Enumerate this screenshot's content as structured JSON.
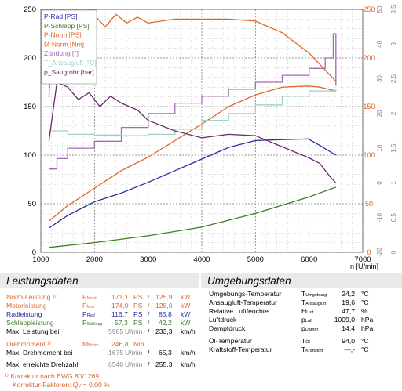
{
  "chart_data": {
    "type": "line",
    "xlabel": "n [U/min]",
    "x_ticks": [
      "1000",
      "2000",
      "3000",
      "4000",
      "5000",
      "6000",
      "7000"
    ],
    "xlim": [
      1000,
      7000
    ],
    "left_axis": {
      "range": [
        0,
        250
      ],
      "ticks": [
        "0",
        "50",
        "100",
        "150",
        "200",
        "250"
      ]
    },
    "right_axis_1": {
      "range": [
        0,
        250
      ],
      "ticks": [
        "0",
        "50",
        "100",
        "150",
        "200",
        "250"
      ],
      "color": "#e2662a"
    },
    "right_axis_2": {
      "range": [
        -20,
        50
      ],
      "ticks": [
        "-20",
        "-10",
        "0",
        "10",
        "20",
        "30",
        "40",
        "50"
      ],
      "color": "#a46ab2"
    },
    "right_axis_3": {
      "range": [
        0,
        3.5
      ],
      "ticks": [
        "0",
        "0.5",
        "1",
        "1.5",
        "2",
        "2.5",
        "3",
        "3.5"
      ],
      "color": "#a46ab2"
    },
    "grid": true,
    "legend_position": "top-left",
    "legend": [
      {
        "label": "P-Rad [PS]",
        "color": "#2c2ca0"
      },
      {
        "label": "P-Schlepp [PS]",
        "color": "#3b7d27"
      },
      {
        "label": "P-Norm [PS]",
        "color": "#e2662a"
      },
      {
        "label": "M-Norm [Nm]",
        "color": "#e2662a"
      },
      {
        "label": "Zündung [°]",
        "color": "#a46ab2"
      },
      {
        "label": "T_Ansaugluft [°C]",
        "color": "#9fd1c7"
      },
      {
        "label": "p_Saugrohr [bar]",
        "color": "#6b2a6e"
      }
    ],
    "series": [
      {
        "name": "P-Rad [PS]",
        "color": "#2c2ca0",
        "x": [
          1150,
          1500,
          2000,
          2500,
          3000,
          3500,
          4000,
          4500,
          5000,
          5500,
          5985,
          6200,
          6500
        ],
        "y": [
          25,
          38,
          52,
          61,
          72,
          84,
          96,
          108,
          115,
          116,
          116.7,
          110,
          100
        ]
      },
      {
        "name": "P-Schlepp [PS]",
        "color": "#3b7d27",
        "x": [
          1150,
          2000,
          3000,
          4000,
          5000,
          6000,
          6500
        ],
        "y": [
          5,
          10,
          17,
          26,
          40,
          57,
          67
        ]
      },
      {
        "name": "P-Norm [PS]",
        "color": "#e2662a",
        "x": [
          1150,
          1500,
          2000,
          2500,
          3000,
          3500,
          4000,
          4500,
          5000,
          5500,
          5985,
          6200,
          6500
        ],
        "y": [
          32,
          48,
          66,
          84,
          98,
          115,
          132,
          150,
          162,
          170,
          171.1,
          170,
          166
        ]
      },
      {
        "name": "M-Norm [Nm]",
        "color": "#e2662a",
        "x": [
          1150,
          1200,
          1400,
          1600,
          1800,
          2000,
          2200,
          2400,
          2600,
          2800,
          3000,
          3500,
          4000,
          4500,
          5000,
          5500,
          6000,
          6500
        ],
        "y": [
          160,
          205,
          236,
          246,
          238,
          244,
          232,
          245,
          236,
          242,
          236,
          240,
          240,
          240,
          238,
          226,
          205,
          176
        ]
      },
      {
        "name": "Zündung [°]",
        "color": "#a46ab2",
        "x": [
          1150,
          1300,
          1500,
          2000,
          2500,
          3000,
          3500,
          4000,
          4500,
          5000,
          5500,
          6000,
          6300,
          6450,
          6500
        ],
        "y": [
          4,
          7,
          10,
          12,
          16,
          20,
          23,
          25,
          27,
          29,
          31,
          33,
          36,
          43,
          28
        ]
      },
      {
        "name": "T_Ansaugluft [°C]",
        "color": "#9fd1c7",
        "x": [
          1150,
          1500,
          2000,
          2500,
          3000,
          3500,
          4000,
          4500,
          5000,
          5500,
          6000,
          6500
        ],
        "y": [
          15,
          14,
          13.8,
          13.6,
          14,
          15.5,
          18,
          20,
          22.5,
          25,
          26.5,
          27
        ]
      },
      {
        "name": "p_Saugrohr [bar]",
        "color": "#6b2a6e",
        "x": [
          1150,
          1300,
          1500,
          1700,
          1900,
          2100,
          2300,
          2500,
          2800,
          3000,
          3500,
          4000,
          4500,
          5000,
          5500,
          6000,
          6200,
          6400,
          6500
        ],
        "y": [
          1.6,
          2.45,
          2.38,
          2.2,
          2.3,
          2.1,
          2.25,
          2.15,
          2.05,
          1.9,
          1.75,
          1.65,
          1.7,
          1.68,
          1.52,
          1.36,
          1.28,
          1.08,
          1.0
        ]
      }
    ]
  },
  "leistungsdaten": {
    "title": "Leistungsdaten",
    "norm": {
      "label": "Norm-Leistung ¹⁾",
      "sym": "P",
      "sub": "Norm",
      "ps": "171,1",
      "ps_unit": "PS",
      "sep": "/",
      "kw": "125,9",
      "kw_unit": "kW"
    },
    "motor": {
      "label": "Motorleistung",
      "sym": "P",
      "sub": "Mot",
      "ps": "174,0",
      "ps_unit": "PS",
      "sep": "/",
      "kw": "128,0",
      "kw_unit": "kW"
    },
    "rad": {
      "label": "Radleistung",
      "sym": "P",
      "sub": "Rad",
      "ps": "116,7",
      "ps_unit": "PS",
      "sep": "/",
      "kw": "85,8",
      "kw_unit": "kW"
    },
    "schlepp": {
      "label": "Schleppleistung",
      "sym": "P",
      "sub": "Schlepp",
      "ps": "57,3",
      "ps_unit": "PS",
      "sep": "/",
      "kw": "42,2",
      "kw_unit": "kW"
    },
    "max_leistung": {
      "label": "Max. Leistung bei",
      "rpm": "5985",
      "rpm_unit": "U/min",
      "sep": "/",
      "speed": "233,3",
      "speed_unit": "km/h"
    },
    "drehmoment": {
      "label": "Drehmoment ¹⁾",
      "sym": "M",
      "sub": "Norm",
      "value": "246,8",
      "unit": "Nm"
    },
    "max_drehmoment": {
      "label": "Max. Drehmoment bei",
      "rpm": "1675",
      "rpm_unit": "U/min",
      "sep": "/",
      "speed": "65,3",
      "speed_unit": "km/h"
    },
    "max_drehzahl": {
      "label": "Max. erreichte Drehzahl",
      "rpm": "6540",
      "rpm_unit": "U/min",
      "sep": "/",
      "speed": "255,3",
      "speed_unit": "km/h"
    },
    "footnote1": "¹⁾ Korrektur nach EWG 80/1269",
    "footnote2": "Korrektur-Faktoren: Q",
    "footnote2_sub": "V",
    "footnote2_val": "=  0,00 %"
  },
  "umgebungsdaten": {
    "title": "Umgebungsdaten",
    "rows": [
      {
        "label": "Umgebungs-Temperatur",
        "sym": "T",
        "sub": "Umgebung",
        "value": "24,2",
        "unit": "°C"
      },
      {
        "label": "Ansaugluft-Temperatur",
        "sym": "T",
        "sub": "Ansaugluft",
        "value": "19,6",
        "unit": "°C"
      },
      {
        "label": "Relative Luftfeuchte",
        "sym": "H",
        "sub": "Luft",
        "value": "47,7",
        "unit": "%"
      },
      {
        "label": "Luftdruck",
        "sym": "p",
        "sub": "Luft",
        "value": "1009,0",
        "unit": "hPa"
      },
      {
        "label": "Dampfdruck",
        "sym": "p",
        "sub": "Dampf",
        "value": "14,4",
        "unit": "hPa"
      },
      {
        "label": "Öl-Temperatur",
        "sym": "T",
        "sub": "Öl",
        "value": "94,0",
        "unit": "°C"
      },
      {
        "label": "Kraftstoff-Temperatur",
        "sym": "T",
        "sub": "Kraftstoff",
        "value": "---,-",
        "unit": "°C"
      }
    ]
  }
}
